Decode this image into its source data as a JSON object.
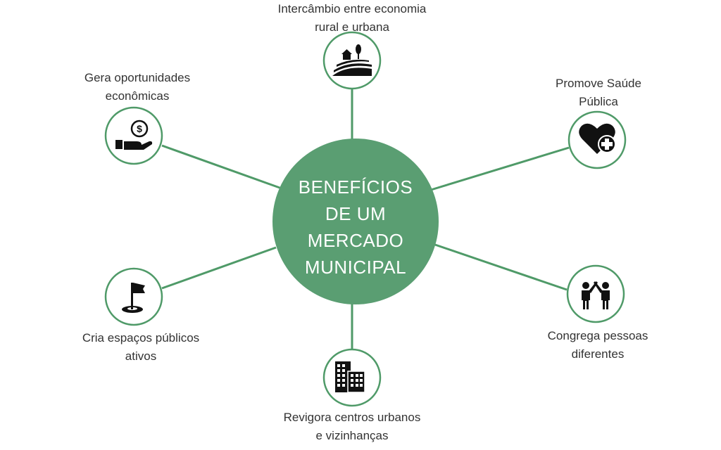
{
  "center": {
    "lines": [
      "BENEFÍCIOS",
      "DE UM",
      "MERCADO",
      "MUNICIPAL"
    ]
  },
  "nodes": {
    "intercambio": {
      "line1": "Intercâmbio entre economia",
      "line2": "rural e urbana",
      "icon": "rural-landscape-icon"
    },
    "oportunidades": {
      "line1": "Gera oportunidades",
      "line2": "econômicas",
      "icon": "money-hand-icon"
    },
    "saude": {
      "line1": "Promove Saúde",
      "line2": "Pública",
      "icon": "heart-plus-icon"
    },
    "espacos": {
      "line1": "Cria espaços públicos",
      "line2": "ativos",
      "icon": "flag-hole-icon"
    },
    "congrega": {
      "line1": "Congrega pessoas",
      "line2": "diferentes",
      "icon": "high-five-icon"
    },
    "revigora": {
      "line1": "Revigora centros urbanos",
      "line2": "e vizinhanças",
      "icon": "buildings-icon"
    }
  },
  "colors": {
    "accent": "#5a9e72",
    "ring": "#4f9a68",
    "icon": "#111111"
  }
}
